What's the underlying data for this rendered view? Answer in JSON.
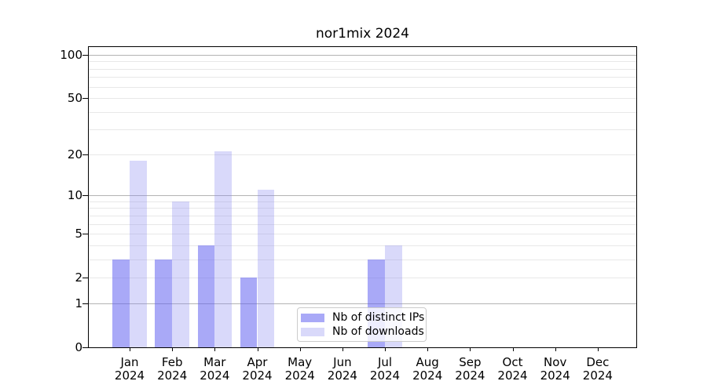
{
  "title": "nor1mix 2024",
  "chart_data": {
    "type": "bar",
    "title": "nor1mix 2024",
    "categories": [
      "Jan 2024",
      "Feb 2024",
      "Mar 2024",
      "Apr 2024",
      "May 2024",
      "Jun 2024",
      "Jul 2024",
      "Aug 2024",
      "Sep 2024",
      "Oct 2024",
      "Nov 2024",
      "Dec 2024"
    ],
    "series": [
      {
        "name": "Nb of distinct IPs",
        "color": "#a9a9f7",
        "fill": "rgba(99,99,240,0.55)",
        "values": [
          3,
          3,
          4,
          2,
          0,
          0,
          3,
          0,
          0,
          0,
          0,
          0
        ]
      },
      {
        "name": "Nb of downloads",
        "color": "#dcdcfa",
        "fill": "rgba(138,138,238,0.32)",
        "values": [
          18,
          9,
          21,
          11,
          0,
          0,
          4,
          0,
          0,
          0,
          0,
          0
        ]
      }
    ],
    "xlabel": "",
    "ylabel": "",
    "yscale": "log1p",
    "ylim": [
      0,
      113
    ],
    "yticks": [
      0,
      1,
      2,
      5,
      10,
      20,
      50,
      100
    ],
    "major_gridlines": [
      1,
      10,
      100
    ],
    "minor_gridlines": [
      2,
      3,
      4,
      5,
      6,
      7,
      8,
      9,
      20,
      30,
      40,
      50,
      60,
      70,
      80,
      90
    ],
    "grid": "on",
    "legend_position": "lower center"
  },
  "colors": {
    "major_gridline": "#b3b3b3",
    "minor_gridline": "#e8e8e8",
    "spine": "#000000",
    "legend_border": "#cbcbcb"
  }
}
